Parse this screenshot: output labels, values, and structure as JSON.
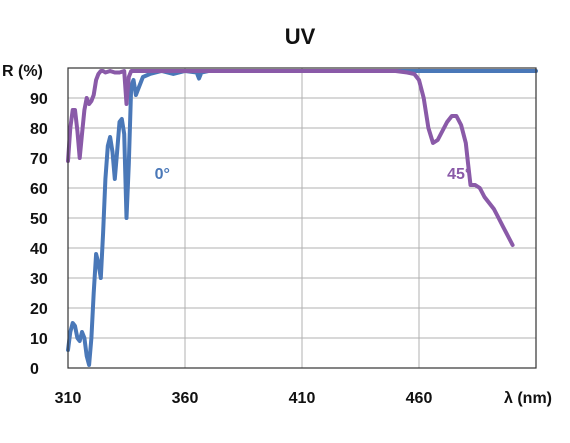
{
  "chart_data": {
    "type": "line",
    "title": "UV",
    "xlabel": "λ (nm)",
    "ylabel": "R (%)",
    "xlim": [
      310,
      510
    ],
    "ylim": [
      0,
      100
    ],
    "x_ticks": [
      310,
      360,
      410,
      460
    ],
    "y_ticks": [
      0,
      10,
      20,
      30,
      40,
      50,
      60,
      70,
      80,
      90
    ],
    "grid": true,
    "series": [
      {
        "name": "0°",
        "color": "#4a78b8",
        "label_position": [
          347,
          65
        ],
        "points": [
          [
            310,
            6
          ],
          [
            311,
            12
          ],
          [
            312,
            15
          ],
          [
            313,
            14
          ],
          [
            314,
            10
          ],
          [
            315,
            9
          ],
          [
            316,
            12
          ],
          [
            317,
            10
          ],
          [
            318,
            4
          ],
          [
            319,
            1
          ],
          [
            320,
            10
          ],
          [
            321,
            25
          ],
          [
            322,
            38
          ],
          [
            323,
            35
          ],
          [
            324,
            30
          ],
          [
            325,
            45
          ],
          [
            326,
            63
          ],
          [
            327,
            74
          ],
          [
            328,
            77
          ],
          [
            329,
            72
          ],
          [
            330,
            63
          ],
          [
            331,
            72
          ],
          [
            332,
            82
          ],
          [
            333,
            83
          ],
          [
            334,
            78
          ],
          [
            335,
            50
          ],
          [
            336,
            68
          ],
          [
            337,
            94
          ],
          [
            338,
            96
          ],
          [
            339,
            91
          ],
          [
            340,
            93
          ],
          [
            342,
            97
          ],
          [
            345,
            98
          ],
          [
            350,
            99
          ],
          [
            355,
            98
          ],
          [
            360,
            99
          ],
          [
            365,
            98.5
          ],
          [
            366,
            96.5
          ],
          [
            367,
            98.5
          ],
          [
            370,
            99
          ],
          [
            380,
            99
          ],
          [
            390,
            99
          ],
          [
            400,
            99
          ],
          [
            410,
            99
          ],
          [
            420,
            99
          ],
          [
            430,
            99
          ],
          [
            440,
            99
          ],
          [
            450,
            99
          ],
          [
            460,
            99
          ],
          [
            470,
            99
          ],
          [
            480,
            99
          ],
          [
            490,
            99
          ],
          [
            500,
            99
          ],
          [
            510,
            99
          ]
        ]
      },
      {
        "name": "45°",
        "color": "#8a5aa8",
        "label_position": [
          472,
          65
        ],
        "points": [
          [
            310,
            69
          ],
          [
            311,
            80
          ],
          [
            312,
            86
          ],
          [
            313,
            86
          ],
          [
            314,
            79
          ],
          [
            315,
            70
          ],
          [
            316,
            78
          ],
          [
            317,
            86
          ],
          [
            318,
            90
          ],
          [
            319,
            88
          ],
          [
            320,
            89
          ],
          [
            321,
            91
          ],
          [
            322,
            96
          ],
          [
            323,
            98
          ],
          [
            324,
            99
          ],
          [
            325,
            99
          ],
          [
            326,
            98.5
          ],
          [
            328,
            99
          ],
          [
            330,
            98.5
          ],
          [
            332,
            98.5
          ],
          [
            334,
            99
          ],
          [
            335,
            88
          ],
          [
            336,
            97
          ],
          [
            337,
            99
          ],
          [
            338,
            99
          ],
          [
            340,
            99
          ],
          [
            350,
            99
          ],
          [
            360,
            99
          ],
          [
            370,
            99
          ],
          [
            380,
            99
          ],
          [
            390,
            99
          ],
          [
            400,
            99
          ],
          [
            410,
            99
          ],
          [
            420,
            99
          ],
          [
            430,
            99
          ],
          [
            440,
            99
          ],
          [
            450,
            99
          ],
          [
            455,
            98.5
          ],
          [
            458,
            98
          ],
          [
            460,
            96
          ],
          [
            462,
            90
          ],
          [
            464,
            80
          ],
          [
            466,
            75
          ],
          [
            468,
            76
          ],
          [
            470,
            79
          ],
          [
            472,
            82
          ],
          [
            474,
            84
          ],
          [
            476,
            84
          ],
          [
            478,
            81
          ],
          [
            480,
            75
          ],
          [
            481,
            68
          ],
          [
            482,
            61
          ],
          [
            484,
            61
          ],
          [
            486,
            60
          ],
          [
            488,
            57
          ],
          [
            490,
            55
          ],
          [
            492,
            53
          ],
          [
            494,
            50
          ],
          [
            496,
            47
          ],
          [
            498,
            44
          ],
          [
            500,
            41
          ]
        ]
      }
    ]
  }
}
